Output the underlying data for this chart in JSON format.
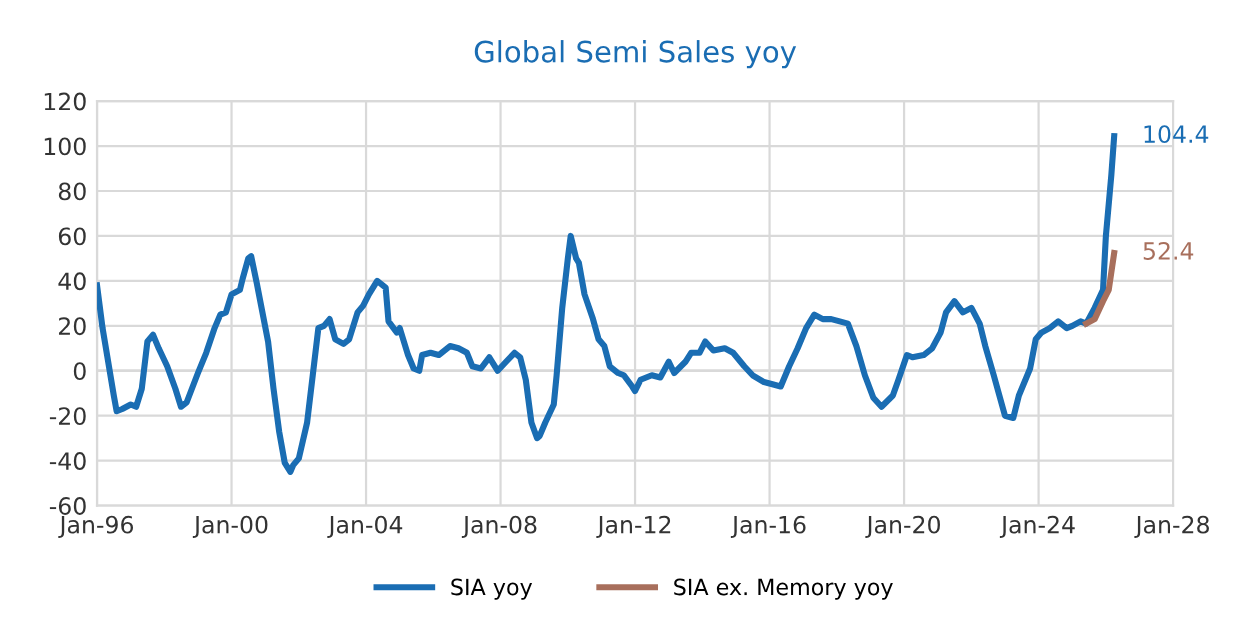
{
  "chart_data": {
    "type": "line",
    "title": "Global Semi Sales yoy",
    "series": [
      {
        "name": "SIA yoy",
        "color": "#1a6db3",
        "x": [
          "1996-01",
          "1996-03",
          "1996-07",
          "1996-08",
          "1996-10",
          "1997-01",
          "1997-03",
          "1997-05",
          "1997-07",
          "1997-09",
          "1997-11",
          "1998-02",
          "1998-05",
          "1998-07",
          "1998-09",
          "1999-01",
          "1999-04",
          "1999-07",
          "1999-09",
          "1999-11",
          "2000-01",
          "2000-04",
          "2000-05",
          "2000-07",
          "2000-08",
          "2000-10",
          "2001-02",
          "2001-04",
          "2001-06",
          "2001-08",
          "2001-10",
          "2001-11",
          "2002-01",
          "2002-04",
          "2002-06",
          "2002-08",
          "2002-10",
          "2002-12",
          "2003-02",
          "2003-05",
          "2003-07",
          "2003-10",
          "2003-12",
          "2004-02",
          "2004-05",
          "2004-08",
          "2004-09",
          "2004-12",
          "2005-01",
          "2005-04",
          "2005-06",
          "2005-08",
          "2005-09",
          "2005-12",
          "2006-03",
          "2006-07",
          "2006-10",
          "2007-01",
          "2007-03",
          "2007-06",
          "2007-09",
          "2007-12",
          "2008-03",
          "2008-06",
          "2008-08",
          "2008-10",
          "2008-12",
          "2009-02",
          "2009-03",
          "2009-05",
          "2009-08",
          "2009-09",
          "2009-11",
          "2010-01",
          "2010-02",
          "2010-04",
          "2010-05",
          "2010-07",
          "2010-10",
          "2010-12",
          "2011-02",
          "2011-04",
          "2011-07",
          "2011-09",
          "2011-12",
          "2012-01",
          "2012-03",
          "2012-07",
          "2012-10",
          "2013-01",
          "2013-03",
          "2013-07",
          "2013-09",
          "2013-12",
          "2014-02",
          "2014-05",
          "2014-09",
          "2014-12",
          "2015-04",
          "2015-07",
          "2015-11",
          "2016-02",
          "2016-05",
          "2016-08",
          "2016-11",
          "2017-02",
          "2017-05",
          "2017-08",
          "2017-11",
          "2018-02",
          "2018-05",
          "2018-08",
          "2018-11",
          "2019-02",
          "2019-05",
          "2019-09",
          "2019-11",
          "2020-02",
          "2020-04",
          "2020-08",
          "2020-11",
          "2021-02",
          "2021-04",
          "2021-07",
          "2021-10",
          "2022-01",
          "2022-04",
          "2022-06",
          "2022-09",
          "2022-11",
          "2023-01",
          "2023-04",
          "2023-06",
          "2023-10",
          "2023-12",
          "2024-02",
          "2024-05",
          "2024-08",
          "2024-11",
          "2025-01",
          "2025-04",
          "2025-06",
          "2025-09",
          "2025-12",
          "2026-01",
          "2026-03",
          "2026-04"
        ],
        "values": [
          38,
          19,
          -11,
          -18,
          -17,
          -15,
          -16,
          -8,
          13,
          16,
          10,
          2,
          -8,
          -16,
          -14,
          -1,
          8,
          19,
          25,
          26,
          34,
          36,
          41,
          50,
          51,
          39,
          13,
          -8,
          -27,
          -41,
          -45,
          -42,
          -39,
          -23,
          -2,
          19,
          20,
          23,
          14,
          12,
          14,
          26,
          29,
          34,
          40,
          37,
          22,
          17,
          19,
          7,
          1,
          0,
          7,
          8,
          7,
          11,
          10,
          8,
          2,
          1,
          6,
          0,
          4,
          8,
          6,
          -4,
          -23,
          -30,
          -29,
          -23,
          -15,
          -2,
          28,
          50,
          60,
          50,
          48,
          34,
          23,
          14,
          11,
          2,
          -1,
          -2,
          -7,
          -9,
          -4,
          -2,
          -3,
          4,
          -1,
          4,
          8,
          8,
          13,
          9,
          10,
          8,
          2,
          -2,
          -5,
          -6,
          -7,
          2,
          10,
          19,
          25,
          23,
          23,
          22,
          21,
          11,
          -2,
          -12,
          -16,
          -11,
          -4,
          7,
          6,
          7,
          10,
          17,
          26,
          31,
          26,
          28,
          21,
          11,
          -2,
          -11,
          -20,
          -21,
          -11,
          1,
          14,
          17,
          19,
          22,
          19,
          20,
          22,
          21,
          28,
          36,
          60,
          87,
          104.4
        ]
      },
      {
        "name": "SIA ex. Memory yoy",
        "color": "#a86f5c",
        "x": [
          "2025-06",
          "2025-09",
          "2025-12",
          "2026-02",
          "2026-04"
        ],
        "values": [
          21,
          23,
          31,
          36,
          52.4
        ]
      }
    ],
    "annotations": [
      {
        "text": "104.4",
        "x": "2026-04",
        "y": 104.4
      },
      {
        "text": "52.4",
        "x": "2026-04",
        "y": 52.4
      }
    ],
    "xlim": [
      "1996-01",
      "2028-01"
    ],
    "xticks": [
      {
        "value": "1996-01",
        "label": "Jan-96"
      },
      {
        "value": "2000-01",
        "label": "Jan-00"
      },
      {
        "value": "2004-01",
        "label": "Jan-04"
      },
      {
        "value": "2008-01",
        "label": "Jan-08"
      },
      {
        "value": "2012-01",
        "label": "Jan-12"
      },
      {
        "value": "2016-01",
        "label": "Jan-16"
      },
      {
        "value": "2020-01",
        "label": "Jan-20"
      },
      {
        "value": "2024-01",
        "label": "Jan-24"
      },
      {
        "value": "2028-01",
        "label": "Jan-28"
      }
    ],
    "ylim": [
      -60,
      120
    ],
    "yticks": [
      -60,
      -40,
      -20,
      0,
      20,
      40,
      60,
      80,
      100,
      120
    ],
    "grid": true,
    "legend": "bottom",
    "line_style": "solid",
    "marker": "none"
  }
}
